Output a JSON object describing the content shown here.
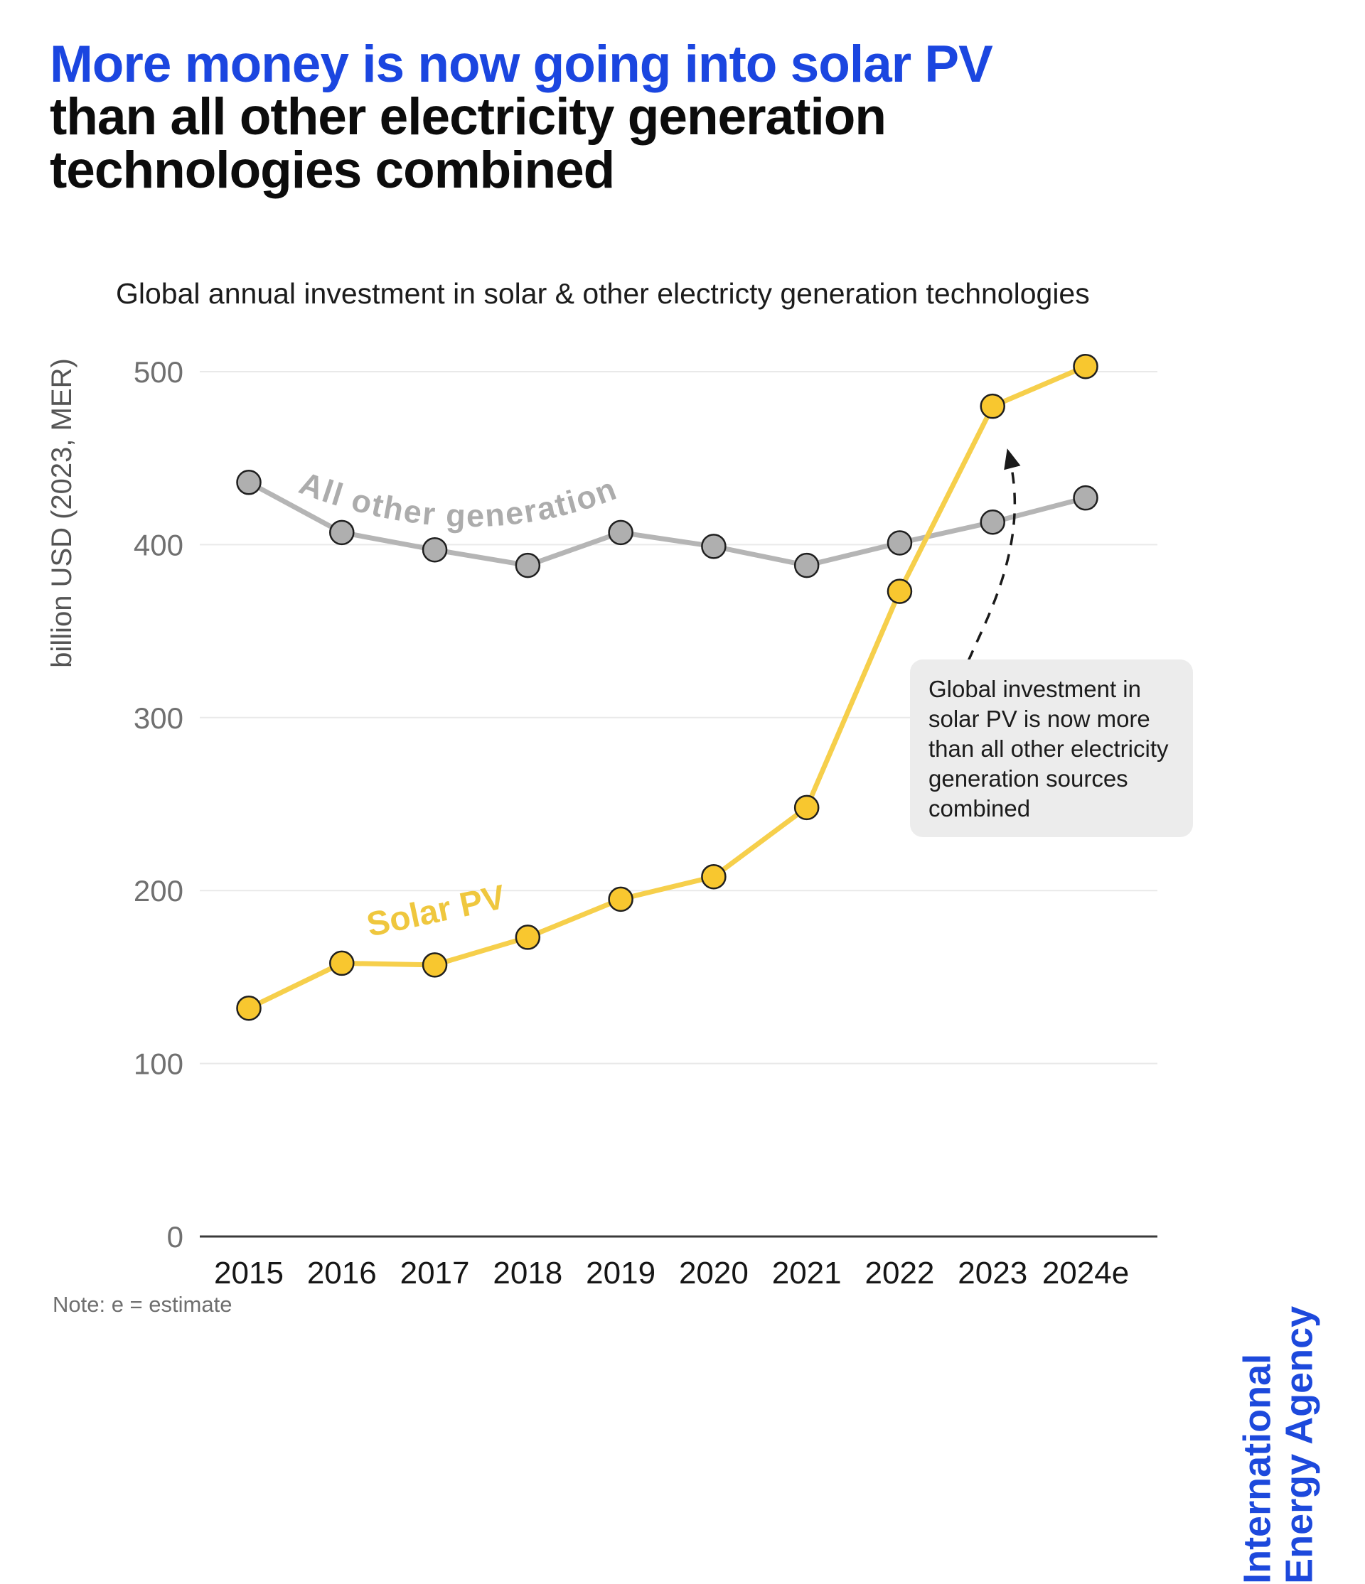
{
  "header": {
    "title_highlight": "More money is now going into solar PV",
    "title_line2": "than all other electricity generation",
    "title_line3": "technologies combined"
  },
  "chart_data": {
    "type": "line",
    "title": "Global annual investment in solar & other electricty generation technologies",
    "ylabel": "billion USD (2023, MER)",
    "categories": [
      "2015",
      "2016",
      "2017",
      "2018",
      "2019",
      "2020",
      "2021",
      "2022",
      "2023",
      "2024e"
    ],
    "series": [
      {
        "name": "Solar PV",
        "line_color": "#F6CF4B",
        "marker_color": "#F8C72F",
        "label_color": "#EFC73E",
        "values": [
          132,
          158,
          157,
          173,
          195,
          208,
          248,
          373,
          480,
          503
        ]
      },
      {
        "name": "All other generation",
        "line_color": "#B5B5B5",
        "marker_color": "#AFAFAF",
        "label_color": "#ACACAC",
        "values": [
          436,
          407,
          397,
          388,
          407,
          399,
          388,
          401,
          413,
          427
        ]
      }
    ],
    "ylim": [
      0,
      500
    ],
    "yticks": [
      0,
      100,
      200,
      300,
      400,
      500
    ],
    "grid": true,
    "legend": "inline-labels"
  },
  "annotation": {
    "text": "Global investment in solar PV is now more than all other electricity generation sources combined"
  },
  "note": "Note: e = estimate",
  "logo": {
    "line1": "International",
    "line2": "Energy Agency"
  },
  "colors": {
    "title_blue": "#1b46e0",
    "logo_blue": "#1d49dc",
    "grid": "#e9e9e9",
    "axis": "#3a3a3a",
    "tick_label": "#707070",
    "x_label": "#161616",
    "marker_stroke": "#1f1f1f",
    "arrow": "#1a1a1a",
    "callout_bg": "#ececec"
  }
}
